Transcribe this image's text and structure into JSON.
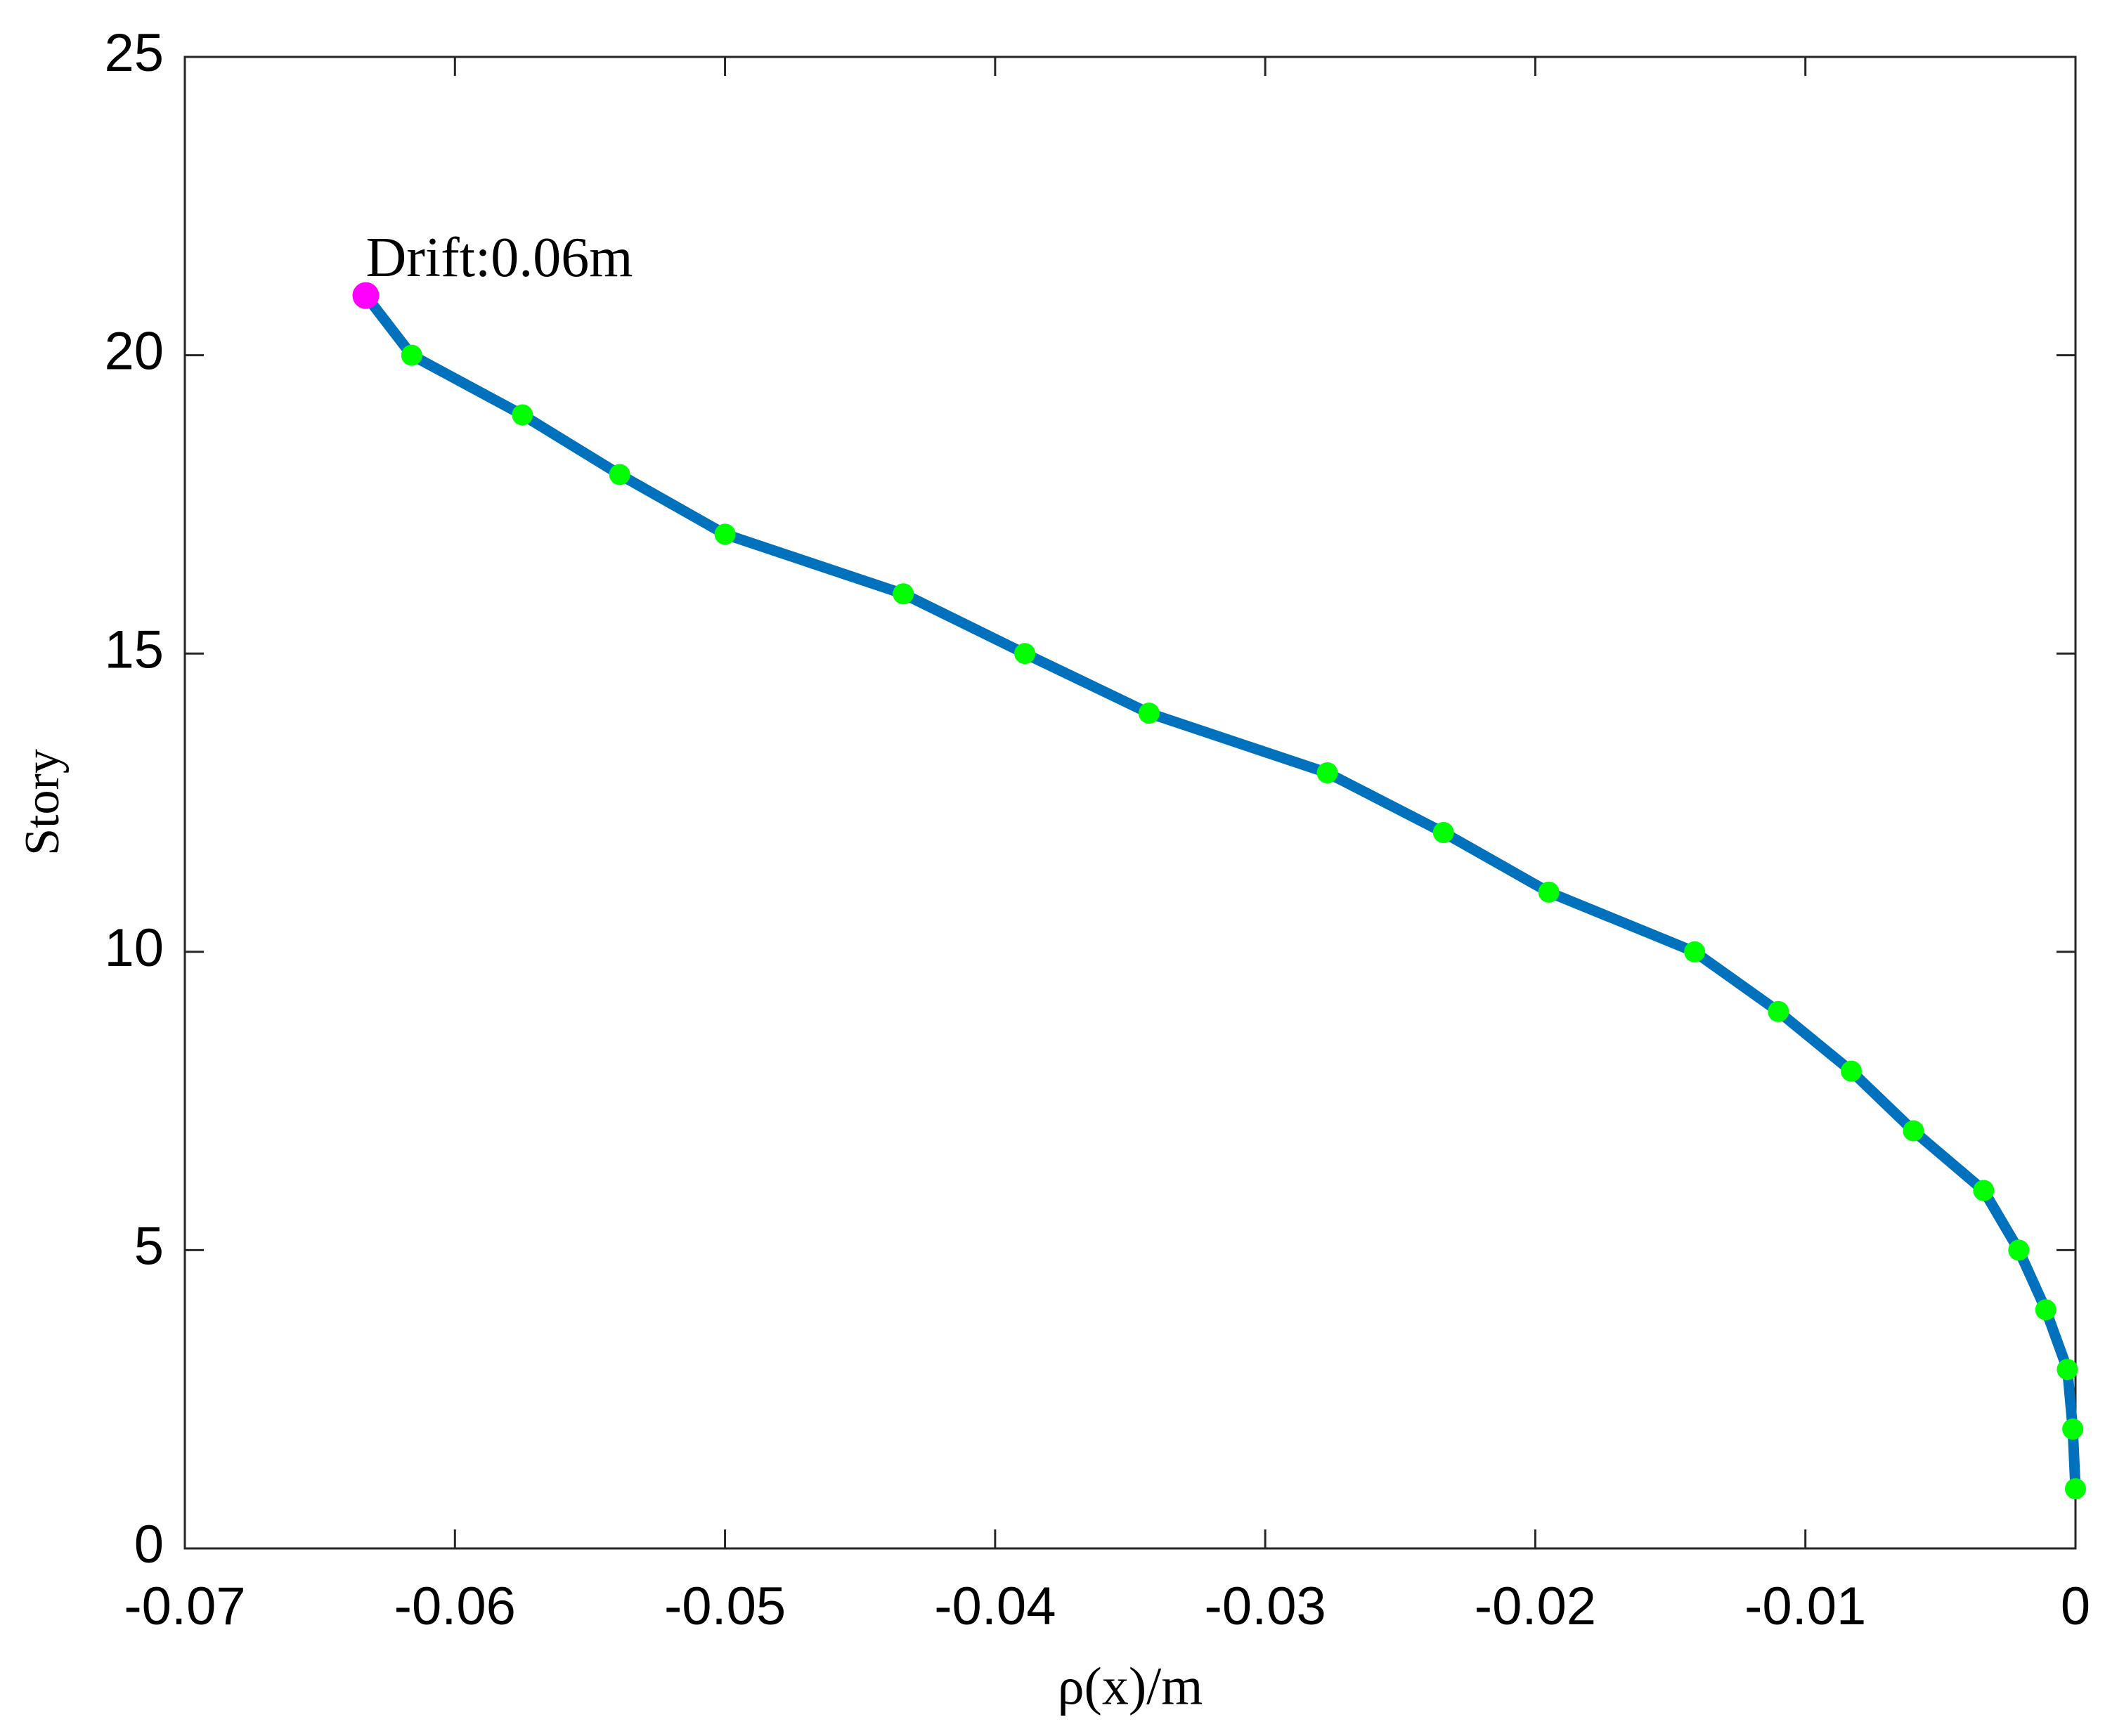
{
  "chart_data": {
    "type": "line",
    "xlabel": "ρ(x)/m",
    "ylabel": "Story",
    "annotation": "Drift:0.06m",
    "x": [
      0,
      -0.0001,
      -0.0003,
      -0.0011,
      -0.0021,
      -0.0034,
      -0.006,
      -0.0083,
      -0.011,
      -0.0141,
      -0.0195,
      -0.0234,
      -0.0277,
      -0.0343,
      -0.0389,
      -0.0434,
      -0.05,
      -0.0539,
      -0.0575,
      -0.0616,
      -0.0633
    ],
    "series": [
      {
        "color": "#0072bd",
        "marker_color": "#00ff00",
        "highlight_color": "#ff00ff",
        "values": [
          1,
          2,
          3,
          4,
          5,
          6,
          7,
          8,
          9,
          10,
          11,
          12,
          13,
          14,
          15,
          16,
          17,
          18,
          19,
          20,
          21
        ]
      }
    ],
    "xlim": [
      -0.07,
      0
    ],
    "xticks": [
      -0.07,
      -0.06,
      -0.05,
      -0.04,
      -0.03,
      -0.02,
      -0.01,
      0
    ],
    "ylim": [
      0,
      25
    ],
    "yticks": [
      0,
      5,
      10,
      15,
      20,
      25
    ],
    "grid": false
  }
}
